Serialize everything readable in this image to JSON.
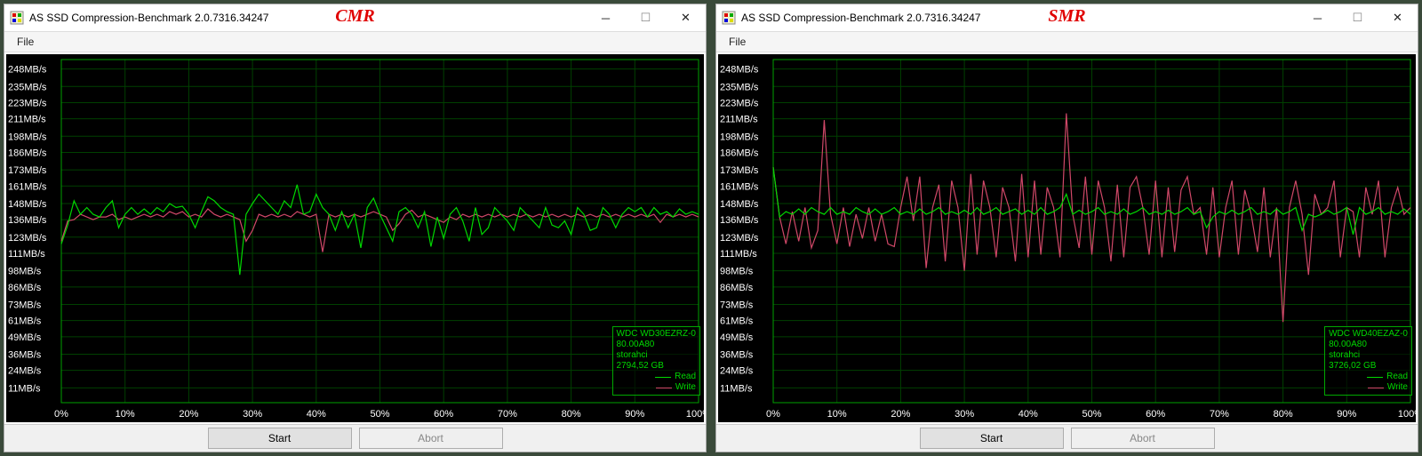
{
  "windows": [
    {
      "id": "cmr",
      "title": "AS SSD Compression-Benchmark 2.0.7316.34247",
      "overlay_label": "CMR",
      "menu_file": "File",
      "buttons": {
        "start": "Start",
        "abort": "Abort",
        "abort_disabled": true
      },
      "legend": {
        "device": "WDC WD30EZRZ-0",
        "fw": "80.00A80",
        "driver": "storahci",
        "capacity": "2794,52 GB",
        "read_label": "Read",
        "write_label": "Write",
        "read_color": "#00d800",
        "write_color": "#d04868"
      },
      "chart": {
        "type": "line",
        "background_color": "#000000",
        "grid_color": "#004000",
        "axis_color": "#00a000",
        "y_min": 0,
        "y_max": 255,
        "y_ticks": [
          11,
          24,
          36,
          49,
          61,
          73,
          86,
          98,
          111,
          123,
          136,
          148,
          161,
          173,
          186,
          198,
          211,
          223,
          235,
          248
        ],
        "y_unit": "MB/s",
        "x_min": 0,
        "x_max": 100,
        "x_ticks": [
          0,
          10,
          20,
          30,
          40,
          50,
          60,
          70,
          80,
          90,
          100
        ],
        "x_unit": "%",
        "series": {
          "read": {
            "color": "#00d800",
            "values": [
              118,
              132,
              150,
              140,
              145,
              140,
              138,
              145,
              150,
              130,
              140,
              145,
              140,
              144,
              140,
              145,
              142,
              148,
              145,
              146,
              140,
              130,
              142,
              153,
              150,
              145,
              142,
              140,
              95,
              140,
              148,
              155,
              150,
              145,
              140,
              150,
              145,
              162,
              140,
              142,
              155,
              145,
              140,
              128,
              142,
              130,
              140,
              115,
              145,
              152,
              140,
              130,
              120,
              142,
              145,
              140,
              130,
              142,
              116,
              138,
              122,
              140,
              145,
              135,
              120,
              145,
              125,
              130,
              145,
              140,
              135,
              128,
              145,
              140,
              135,
              130,
              145,
              132,
              130,
              135,
              125,
              145,
              140,
              128,
              130,
              145,
              140,
              130,
              140,
              145,
              142,
              145,
              138,
              145,
              140,
              142,
              138,
              144,
              140,
              142,
              140
            ]
          },
          "write": {
            "color": "#d04868",
            "values": [
              120,
              135,
              136,
              140,
              138,
              136,
              138,
              138,
              140,
              136,
              138,
              136,
              138,
              140,
              138,
              140,
              138,
              142,
              140,
              142,
              138,
              140,
              138,
              144,
              140,
              138,
              140,
              138,
              136,
              120,
              128,
              140,
              138,
              140,
              138,
              140,
              138,
              142,
              140,
              138,
              140,
              112,
              140,
              138,
              140,
              138,
              140,
              138,
              140,
              142,
              140,
              138,
              128,
              133,
              140,
              143,
              138,
              140,
              138,
              136,
              134,
              138,
              136,
              140,
              138,
              140,
              138,
              140,
              138,
              140,
              138,
              140,
              138,
              140,
              138,
              140,
              138,
              140,
              138,
              140,
              138,
              140,
              138,
              140,
              138,
              140,
              138,
              140,
              138,
              140,
              138,
              140,
              138,
              140,
              134,
              140,
              138,
              140,
              138,
              140,
              138
            ]
          }
        }
      }
    },
    {
      "id": "smr",
      "title": "AS SSD Compression-Benchmark 2.0.7316.34247",
      "overlay_label": "SMR",
      "menu_file": "File",
      "buttons": {
        "start": "Start",
        "abort": "Abort",
        "abort_disabled": true
      },
      "legend": {
        "device": "WDC WD40EZAZ-0",
        "fw": "80.00A80",
        "driver": "storahci",
        "capacity": "3726,02 GB",
        "read_label": "Read",
        "write_label": "Write",
        "read_color": "#00d800",
        "write_color": "#d04868"
      },
      "chart": {
        "type": "line",
        "background_color": "#000000",
        "grid_color": "#004000",
        "axis_color": "#00a000",
        "y_min": 0,
        "y_max": 255,
        "y_ticks": [
          11,
          24,
          36,
          49,
          61,
          73,
          86,
          98,
          111,
          123,
          136,
          148,
          161,
          173,
          186,
          198,
          211,
          223,
          235,
          248
        ],
        "y_unit": "MB/s",
        "x_min": 0,
        "x_max": 100,
        "x_ticks": [
          0,
          10,
          20,
          30,
          40,
          50,
          60,
          70,
          80,
          90,
          100
        ],
        "x_unit": "%",
        "series": {
          "read": {
            "color": "#00d800",
            "values": [
              175,
              138,
              142,
              140,
              144,
              140,
              145,
              142,
              140,
              145,
              140,
              142,
              140,
              145,
              142,
              140,
              144,
              140,
              142,
              145,
              140,
              142,
              140,
              144,
              140,
              142,
              145,
              140,
              142,
              140,
              143,
              140,
              145,
              140,
              142,
              145,
              140,
              142,
              144,
              140,
              143,
              140,
              145,
              140,
              142,
              145,
              155,
              140,
              143,
              140,
              142,
              145,
              140,
              142,
              140,
              144,
              140,
              142,
              145,
              140,
              142,
              140,
              143,
              140,
              142,
              145,
              140,
              142,
              130,
              138,
              142,
              140,
              143,
              140,
              142,
              145,
              140,
              142,
              140,
              144,
              140,
              142,
              145,
              128,
              140,
              138,
              140,
              143,
              140,
              142,
              145,
              125,
              145,
              140,
              142,
              145,
              140,
              142,
              140,
              144,
              140
            ]
          },
          "write": {
            "color": "#d04868",
            "values": [
              175,
              138,
              118,
              142,
              120,
              145,
              115,
              128,
              210,
              140,
              118,
              145,
              116,
              140,
              122,
              145,
              120,
              140,
              118,
              116,
              145,
              168,
              135,
              168,
              100,
              145,
              162,
              105,
              165,
              145,
              98,
              170,
              110,
              165,
              145,
              108,
              160,
              145,
              105,
              170,
              108,
              165,
              110,
              160,
              145,
              108,
              215,
              140,
              115,
              168,
              110,
              165,
              145,
              105,
              162,
              108,
              160,
              168,
              145,
              110,
              165,
              108,
              160,
              112,
              158,
              168,
              140,
              145,
              110,
              160,
              108,
              145,
              165,
              110,
              158,
              140,
              112,
              160,
              108,
              145,
              60,
              145,
              165,
              140,
              95,
              155,
              140,
              145,
              165,
              108,
              145,
              142,
              108,
              160,
              140,
              165,
              108,
              145,
              160,
              140,
              145
            ]
          }
        }
      }
    }
  ],
  "colors": {
    "page_bg": "#3a4a3a",
    "overlay_text": "#e00000"
  }
}
